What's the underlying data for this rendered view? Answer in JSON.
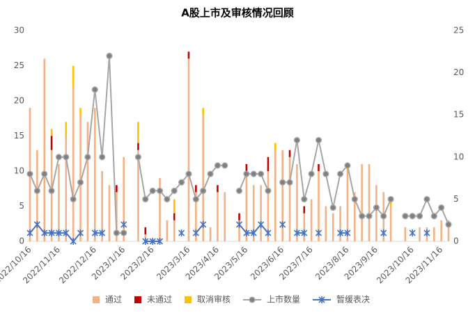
{
  "chart_data": {
    "type": "combo",
    "title": "A股上市及审核情况回顾",
    "categories": [
      "2022/10/16",
      null,
      null,
      null,
      "2022/11/16",
      null,
      null,
      null,
      null,
      "2022/12/16",
      null,
      null,
      null,
      "2023/1/16",
      null,
      null,
      null,
      "2023/2/16",
      null,
      null,
      null,
      null,
      "2023/3/16",
      null,
      null,
      null,
      "2023/4/16",
      null,
      null,
      null,
      "2023/5/16",
      null,
      null,
      null,
      null,
      "2023/6/16",
      null,
      null,
      null,
      "2023/7/16",
      null,
      null,
      null,
      null,
      "2023/8/16",
      null,
      null,
      null,
      "2023/9/16",
      null,
      null,
      null,
      null,
      "2023/10/16",
      null,
      null,
      null,
      "2023/11/16",
      null
    ],
    "ylim": [
      0,
      30
    ],
    "yticks": [
      0,
      5,
      10,
      15,
      20,
      25,
      30
    ],
    "y2lim": [
      0,
      25
    ],
    "y2ticks": [
      0,
      5,
      10,
      15,
      20,
      25
    ],
    "grid": false,
    "legend": "bottom",
    "series": [
      {
        "name": "通过",
        "type": "bar",
        "color": "#f4b183",
        "values": [
          19,
          13,
          26,
          13,
          11,
          15,
          22,
          18,
          17,
          19,
          10,
          8,
          7,
          12,
          0,
          13,
          1,
          0,
          9,
          3,
          3,
          0,
          26,
          7,
          18,
          2,
          7,
          7,
          0,
          3,
          10,
          8,
          8,
          10,
          13,
          13,
          12,
          11,
          4,
          6,
          10,
          5,
          4,
          5,
          10,
          7,
          11,
          11,
          8,
          7,
          5,
          0,
          2,
          0,
          2,
          2,
          2,
          3,
          3
        ]
      },
      {
        "name": "未通过",
        "type": "bar",
        "color": "#c00000",
        "values": [
          0,
          0,
          0,
          2,
          0,
          0,
          0,
          0,
          0,
          0,
          0,
          0,
          1,
          0,
          0,
          1,
          1,
          0,
          0,
          0,
          1,
          0,
          1,
          1,
          0,
          0,
          1,
          0,
          0,
          1,
          1,
          0,
          0,
          2,
          0,
          0,
          1,
          0,
          1,
          0,
          1,
          0,
          0,
          0,
          0,
          0,
          0,
          0,
          0,
          0,
          0,
          0,
          0,
          0,
          0,
          0,
          0,
          0,
          0
        ]
      },
      {
        "name": "取消审核",
        "type": "bar",
        "color": "#ffc000",
        "values": [
          0,
          0,
          0,
          1,
          0,
          2,
          3,
          1,
          0,
          0,
          0,
          0,
          0,
          0,
          0,
          3,
          0,
          0,
          0,
          0,
          2,
          0,
          0,
          0,
          1,
          0,
          0,
          0,
          0,
          0,
          0,
          0,
          0,
          0,
          1,
          0,
          0,
          0,
          0,
          0,
          0,
          0,
          0,
          0,
          1,
          0,
          0,
          0,
          0,
          0,
          1,
          0,
          0,
          0,
          0,
          0,
          0,
          0,
          0
        ]
      },
      {
        "name": "上市数量",
        "type": "line",
        "axis": "y2",
        "color": "#a5a5a5",
        "marker": "circle",
        "values": [
          8,
          6,
          8,
          6,
          10,
          10,
          5,
          7,
          10,
          18,
          10,
          22,
          1,
          1,
          null,
          10,
          5,
          6,
          6,
          5,
          6,
          7,
          8,
          5,
          6,
          8,
          9,
          9,
          null,
          6,
          8,
          8,
          8,
          6,
          null,
          7,
          7,
          12,
          5,
          8,
          12,
          8,
          4,
          8,
          9,
          5,
          3,
          3,
          4,
          3,
          5,
          null,
          3,
          3,
          3,
          5,
          3,
          4,
          2
        ]
      },
      {
        "name": "暂缓表决",
        "type": "line",
        "axis": "y2",
        "color": "#4472c4",
        "marker": "asterisk",
        "values": [
          1,
          2,
          1,
          1,
          1,
          1,
          0,
          1,
          null,
          1,
          1,
          null,
          null,
          2,
          null,
          null,
          0,
          0,
          0,
          null,
          null,
          1,
          null,
          1,
          2,
          null,
          null,
          null,
          null,
          2,
          1,
          1,
          2,
          1,
          null,
          2,
          null,
          1,
          1,
          null,
          1,
          null,
          null,
          1,
          1,
          null,
          null,
          null,
          null,
          1,
          null,
          null,
          null,
          1,
          null,
          1,
          null,
          null,
          null
        ]
      }
    ]
  }
}
